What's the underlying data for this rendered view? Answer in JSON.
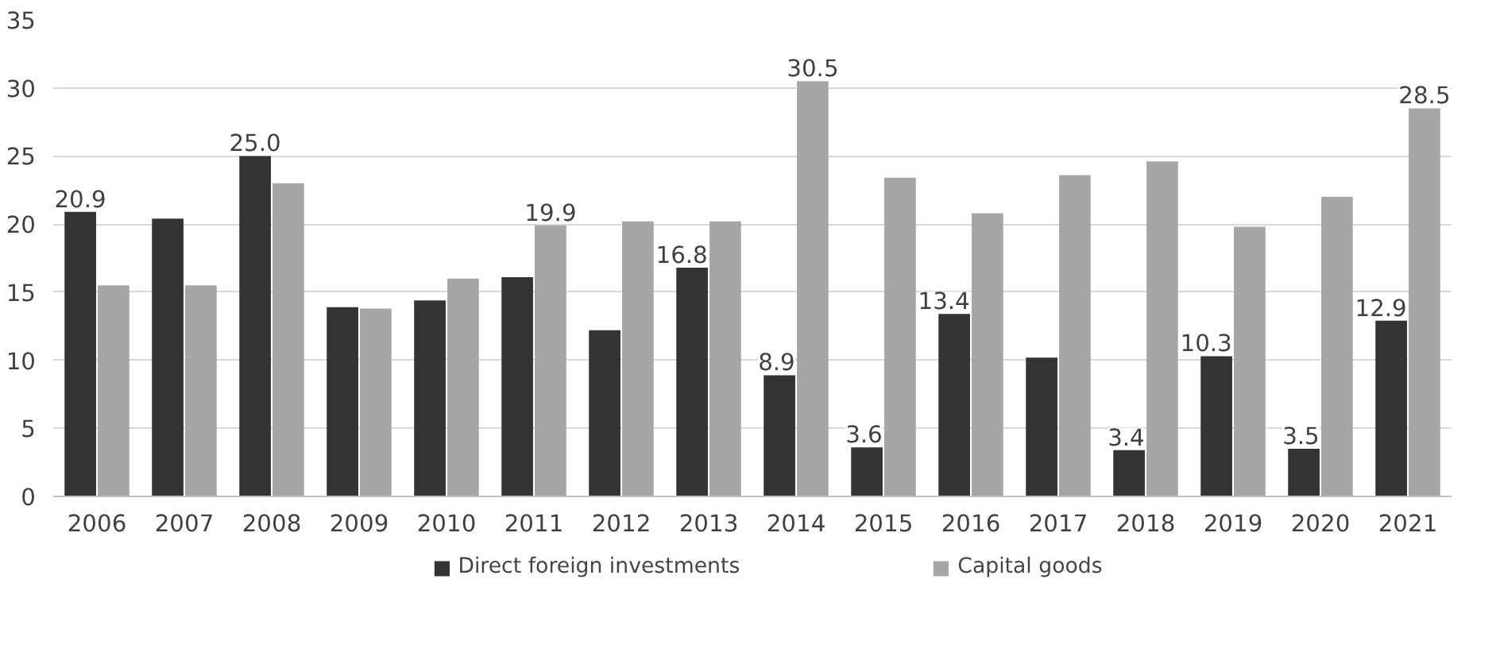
{
  "chart_data": {
    "type": "bar",
    "categories": [
      "2006",
      "2007",
      "2008",
      "2009",
      "2010",
      "2011",
      "2012",
      "2013",
      "2014",
      "2015",
      "2016",
      "2017",
      "2018",
      "2019",
      "2020",
      "2021"
    ],
    "series": [
      {
        "name": "Direct foreign investments",
        "color": "#333333",
        "values": [
          20.9,
          20.4,
          25.0,
          13.9,
          14.4,
          16.1,
          12.2,
          16.8,
          8.9,
          3.6,
          13.4,
          10.2,
          3.4,
          10.3,
          3.5,
          12.9
        ],
        "value_labels": [
          "20.9",
          null,
          "25.0",
          null,
          null,
          null,
          null,
          "16.8",
          "8.9",
          "3.6",
          "13.4",
          null,
          "3.4",
          "10.3",
          "3.5",
          "12.9"
        ]
      },
      {
        "name": "Capital goods",
        "color": "#a6a6a6",
        "values": [
          15.5,
          15.5,
          23.0,
          13.8,
          16.0,
          19.9,
          20.2,
          20.2,
          30.5,
          23.4,
          20.8,
          23.6,
          24.6,
          19.8,
          22.0,
          28.5
        ],
        "value_labels": [
          null,
          null,
          null,
          null,
          null,
          "19.9",
          null,
          null,
          "30.5",
          null,
          null,
          null,
          null,
          null,
          null,
          "28.5"
        ]
      }
    ],
    "ylim": [
      0,
      35
    ],
    "yticks": [
      0,
      5,
      10,
      15,
      20,
      25,
      30,
      35
    ],
    "grid": "y",
    "legend": "bottom"
  }
}
